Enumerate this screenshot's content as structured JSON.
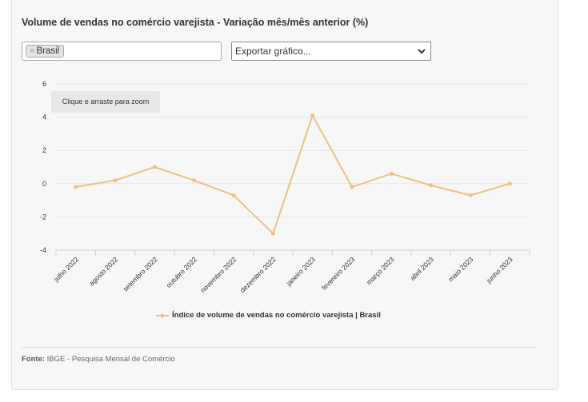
{
  "header": {
    "title": "Volume de vendas no comércio varejista - Variação mês/mês anterior (%)"
  },
  "filter": {
    "chip_label": "Brasil",
    "chip_remove": "×"
  },
  "export": {
    "label": "Exportar gráfico..."
  },
  "zoom_hint": "Clique e arraste para zoom",
  "footer": {
    "source_label": "Fonte:",
    "source_text": " IBGE - Pesquisa Mensal de Comércio"
  },
  "colors": {
    "series": "#f0c080",
    "grid": "#e6e6e6",
    "axis": "#cfd3dc"
  },
  "chart_data": {
    "type": "line",
    "title": "Volume de vendas no comércio varejista - Variação mês/mês anterior (%)",
    "categories": [
      "julho 2022",
      "agosto 2022",
      "setembro 2022",
      "outubro 2022",
      "novembro 2022",
      "dezembro 2022",
      "janeiro 2023",
      "fevereiro 2023",
      "março 2023",
      "abril 2023",
      "maio 2023",
      "junho 2023"
    ],
    "series": [
      {
        "name": "Índice de volume de vendas no comércio varejista | Brasil",
        "values": [
          -0.2,
          0.2,
          1.0,
          0.2,
          -0.7,
          -3.0,
          4.1,
          -0.2,
          0.6,
          -0.1,
          -0.7,
          0.0
        ]
      }
    ],
    "yticks": [
      6,
      4,
      2,
      0,
      -2,
      -4
    ],
    "ylim": [
      -4,
      6
    ],
    "grid": true,
    "legend_position": "bottom-center"
  }
}
